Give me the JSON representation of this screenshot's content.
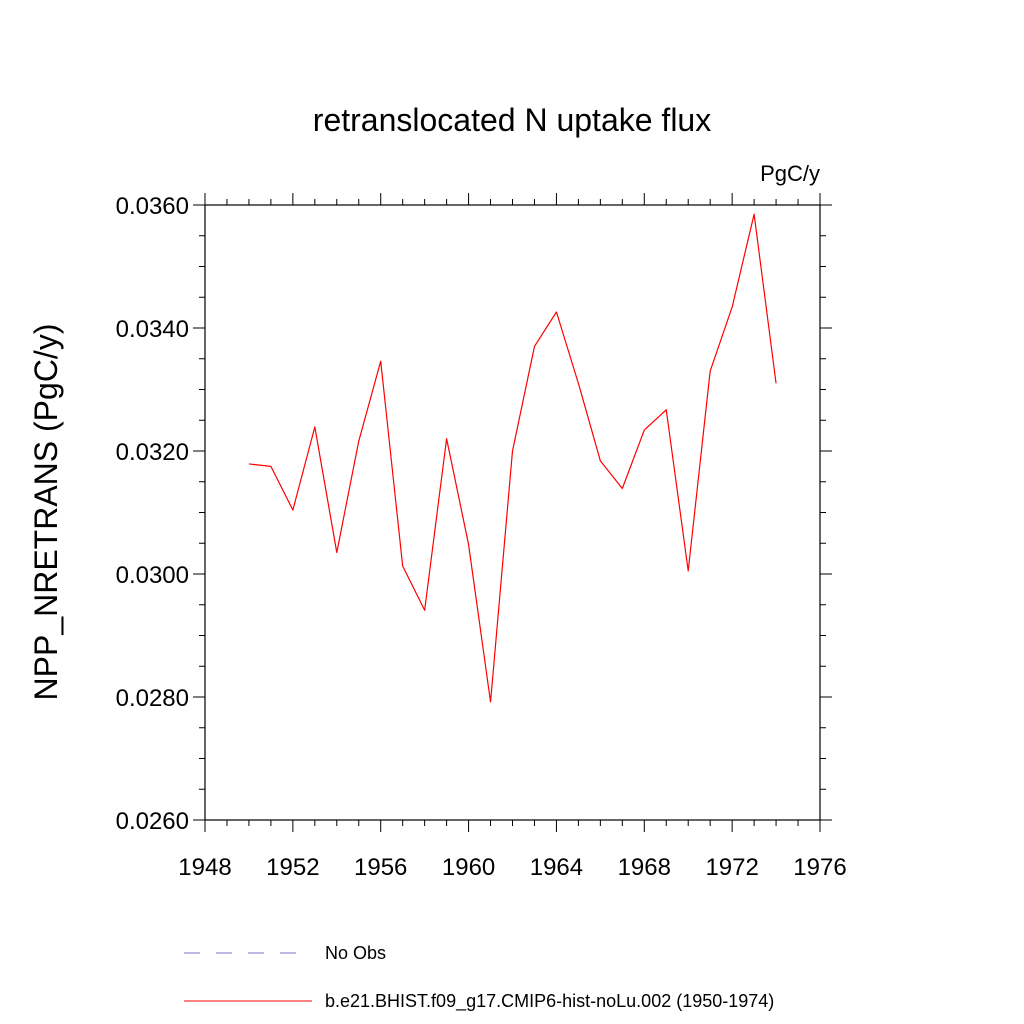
{
  "chart_data": {
    "type": "line",
    "title": "retranslocated N uptake flux",
    "units": "PgC/y",
    "ylabel": "NPP_NRETRANS  (PgC/y)",
    "xlabel": "",
    "xlim": [
      1948,
      1976
    ],
    "ylim": [
      0.026,
      0.036
    ],
    "x_ticks": [
      1948,
      1952,
      1956,
      1960,
      1964,
      1968,
      1972,
      1976
    ],
    "x_tick_labels": [
      "1948",
      "1952",
      "1956",
      "1960",
      "1964",
      "1968",
      "1972",
      "1976"
    ],
    "y_ticks": [
      0.026,
      0.028,
      0.03,
      0.032,
      0.034,
      0.036
    ],
    "y_tick_labels": [
      "0.0260",
      "0.0280",
      "0.0300",
      "0.0320",
      "0.0340",
      "0.0360"
    ],
    "grid": false,
    "legend_position": "bottom",
    "series": [
      {
        "name": "No Obs",
        "color": "#7777cc",
        "dash": true,
        "x": [],
        "y": []
      },
      {
        "name": "b.e21.BHIST.f09_g17.CMIP6-hist-noLu.002 (1950-1974)",
        "color": "#ff0000",
        "dash": false,
        "x": [
          1950,
          1951,
          1952,
          1953,
          1954,
          1955,
          1956,
          1957,
          1958,
          1959,
          1960,
          1961,
          1962,
          1963,
          1964,
          1965,
          1966,
          1967,
          1968,
          1969,
          1970,
          1971,
          1972,
          1973,
          1974
        ],
        "y": [
          0.03179,
          0.03175,
          0.03104,
          0.03239,
          0.03035,
          0.03216,
          0.03346,
          0.03013,
          0.02941,
          0.0322,
          0.03048,
          0.02792,
          0.032,
          0.0337,
          0.03426,
          0.0331,
          0.03184,
          0.03139,
          0.03234,
          0.03267,
          0.03005,
          0.0333,
          0.03434,
          0.03585,
          0.0331
        ]
      }
    ]
  }
}
